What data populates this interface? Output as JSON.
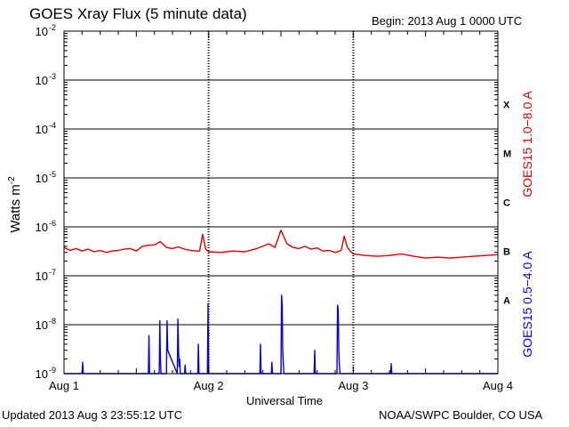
{
  "header": {
    "title": "GOES Xray Flux (5 minute data)",
    "begin": "Begin:  2013 Aug 1 0000 UTC"
  },
  "footer": {
    "updated": "Updated 2013 Aug  3 23:55:12 UTC",
    "credit": "NOAA/SWPC Boulder, CO USA"
  },
  "colors": {
    "long_channel": "#dd0000",
    "short_channel": "#0000ee"
  },
  "chart_data": {
    "type": "line",
    "title": "GOES Xray Flux (5 minute data)",
    "ylabel_base": "Watts m",
    "ylabel_exp": "-2",
    "xlabel": "Universal Time",
    "y_scale": "log",
    "ylim": [
      1e-09,
      0.01
    ],
    "xlim": [
      0,
      72
    ],
    "x_unit": "hours since 2013 Aug 1 0000 UTC",
    "grid": true,
    "y_ticks": [
      {
        "value": 0.01,
        "base": "10",
        "exp": "-2"
      },
      {
        "value": 0.001,
        "base": "10",
        "exp": "-3"
      },
      {
        "value": 0.0001,
        "base": "10",
        "exp": "-4"
      },
      {
        "value": 1e-05,
        "base": "10",
        "exp": "-5"
      },
      {
        "value": 1e-06,
        "base": "10",
        "exp": "-6"
      },
      {
        "value": 1e-07,
        "base": "10",
        "exp": "-7"
      },
      {
        "value": 1e-08,
        "base": "10",
        "exp": "-8"
      },
      {
        "value": 1e-09,
        "base": "10",
        "exp": "-9"
      }
    ],
    "x_ticks": [
      {
        "value": 0,
        "label": "Aug 1"
      },
      {
        "value": 24,
        "label": "Aug 2"
      },
      {
        "value": 48,
        "label": "Aug 3"
      },
      {
        "value": 72,
        "label": "Aug 4"
      }
    ],
    "flare_classes": [
      {
        "label": "X",
        "center": 0.000316
      },
      {
        "label": "M",
        "center": 3.16e-05
      },
      {
        "label": "C",
        "center": 3.16e-06
      },
      {
        "label": "B",
        "center": 3.16e-07
      },
      {
        "label": "A",
        "center": 3.16e-08
      }
    ],
    "series": [
      {
        "name": "GOES15 1.0−8.0 A",
        "color": "#dd0000",
        "x": [
          0,
          1,
          2,
          3,
          4,
          5,
          6,
          7,
          8,
          9,
          10,
          11,
          12,
          13,
          14,
          15,
          16,
          17,
          18,
          19,
          20,
          21,
          22,
          22.5,
          23,
          23.5,
          24,
          26,
          28,
          30,
          32,
          34,
          35,
          36,
          37,
          38,
          39,
          40,
          41,
          42,
          43,
          44,
          45,
          46,
          46.5,
          47,
          47.5,
          48,
          50,
          52,
          54,
          56,
          58,
          60,
          62,
          64,
          66,
          68,
          70,
          72
        ],
        "y": [
          3.8e-07,
          3.3e-07,
          3.6e-07,
          3.2e-07,
          3.5e-07,
          3.1e-07,
          3.3e-07,
          3e-07,
          3.2e-07,
          3.3e-07,
          3.5e-07,
          3.6e-07,
          3.2e-07,
          4e-07,
          4.2e-07,
          4.3e-07,
          5e-07,
          3.8e-07,
          3.6e-07,
          3.9e-07,
          3.5e-07,
          3.3e-07,
          3.2e-07,
          3.2e-07,
          7e-07,
          3.5e-07,
          3.1e-07,
          3e-07,
          3.2e-07,
          3.1e-07,
          3.6e-07,
          4.5e-07,
          3.8e-07,
          8.5e-07,
          4.5e-07,
          3.8e-07,
          3.6e-07,
          4e-07,
          3.5e-07,
          3.7e-07,
          3.2e-07,
          3.3e-07,
          3e-07,
          3.3e-07,
          6.5e-07,
          3.8e-07,
          3.2e-07,
          2.8e-07,
          2.6e-07,
          2.5e-07,
          2.6e-07,
          2.8e-07,
          2.5e-07,
          2.3e-07,
          2.4e-07,
          2.3e-07,
          2.4e-07,
          2.5e-07,
          2.6e-07,
          2.7e-07
        ]
      },
      {
        "name": "GOES15 0.5−4.0 A",
        "color": "#0000ee",
        "x": [
          0,
          3,
          3.1,
          3.2,
          14,
          14.1,
          14.2,
          15.8,
          15.9,
          16.0,
          16.1,
          17,
          17.1,
          17.2,
          18.8,
          18.9,
          19.0,
          19.1,
          19.2,
          19.3,
          20.0,
          20.1,
          20.2,
          22.2,
          22.3,
          22.4,
          23.8,
          23.9,
          24.0,
          32.5,
          32.6,
          32.7,
          34.4,
          34.5,
          34.6,
          36.0,
          36.1,
          36.2,
          36.3,
          36.4,
          36.5,
          41.5,
          41.6,
          41.7,
          45.3,
          45.4,
          45.5,
          45.6,
          45.7,
          45.8,
          54.2,
          54.3,
          54.4,
          72
        ],
        "y": [
          1e-09,
          1e-09,
          1.7e-09,
          1e-09,
          1e-09,
          6e-09,
          1e-09,
          1e-09,
          1.2e-08,
          2e-09,
          1e-09,
          1e-09,
          1.2e-08,
          3e-09,
          1e-09,
          1.3e-08,
          3e-09,
          1.4e-09,
          2e-09,
          1e-09,
          1e-09,
          1.5e-09,
          1e-09,
          1e-09,
          4e-09,
          1e-09,
          1e-09,
          2.7e-08,
          1e-09,
          1e-09,
          4e-09,
          1e-09,
          1e-09,
          1.7e-09,
          1e-09,
          1e-09,
          4e-08,
          2.5e-08,
          3e-09,
          1.5e-09,
          1e-09,
          1e-09,
          3e-09,
          1e-09,
          1e-09,
          2.5e-08,
          2e-08,
          3e-09,
          1.5e-09,
          1e-09,
          1e-09,
          1.6e-09,
          1e-09,
          1e-09
        ]
      }
    ]
  }
}
